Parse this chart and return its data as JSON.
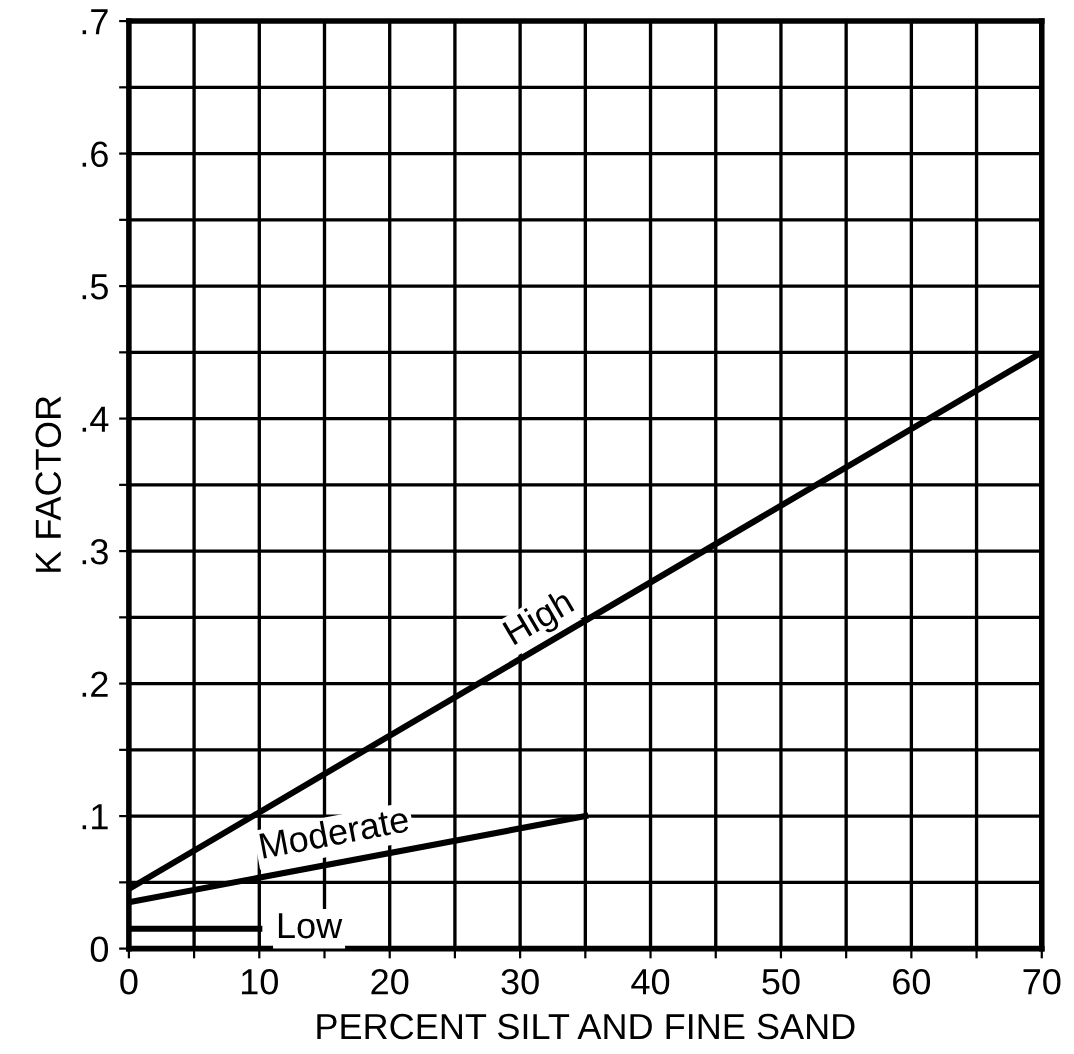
{
  "chart_data": {
    "type": "line",
    "xlabel": "PERCENT SILT AND FINE SAND",
    "ylabel": "K FACTOR",
    "series": [
      {
        "name": "High",
        "color": "#000000",
        "x": [
          0,
          70
        ],
        "values": [
          0.045,
          0.45
        ]
      },
      {
        "name": "Moderate",
        "color": "#000000",
        "x": [
          0,
          35
        ],
        "values": [
          0.035,
          0.1
        ]
      },
      {
        "name": "Low",
        "color": "#000000",
        "x": [
          0,
          10
        ],
        "values": [
          0.015,
          0.015
        ]
      }
    ],
    "xlim": [
      0,
      70
    ],
    "ylim": [
      0,
      0.7
    ],
    "xticks": [
      0,
      {
        "value": 5,
        "label": null
      },
      10,
      {
        "value": 15,
        "label": null
      },
      20,
      {
        "value": 25,
        "label": null
      },
      30,
      {
        "value": 35,
        "label": null
      },
      40,
      {
        "value": 45,
        "label": null
      },
      50,
      {
        "value": 55,
        "label": null
      },
      60,
      {
        "value": 65,
        "label": null
      },
      70
    ],
    "yticks": [
      0,
      {
        "value": 0.05,
        "label": null
      },
      {
        "value": 0.1,
        "label": ".1"
      },
      {
        "value": 0.15,
        "label": null
      },
      {
        "value": 0.2,
        "label": ".2"
      },
      {
        "value": 0.25,
        "label": null
      },
      {
        "value": 0.3,
        "label": ".3"
      },
      {
        "value": 0.35,
        "label": null
      },
      {
        "value": 0.4,
        "label": ".4"
      },
      {
        "value": 0.45,
        "label": null
      },
      {
        "value": 0.5,
        "label": ".5"
      },
      {
        "value": 0.55,
        "label": null
      },
      {
        "value": 0.6,
        "label": ".6"
      },
      {
        "value": 0.65,
        "label": null
      },
      {
        "value": 0.7,
        "label": ".7"
      }
    ],
    "grid": true,
    "marker": "none",
    "line_style": "solid",
    "legend": false
  }
}
